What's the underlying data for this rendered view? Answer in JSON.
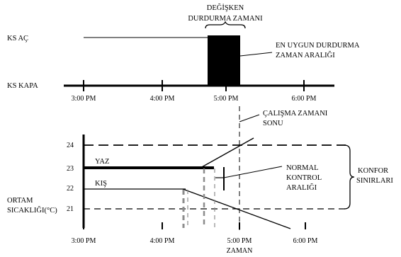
{
  "top_chart": {
    "variable_stop_time_line1": "DEĞİŞKEN",
    "variable_stop_time_line2": "DURDURMA ZAMANI",
    "optimum_stop_line1": "EN UYGUN DURDURMA",
    "optimum_stop_line2": "ZAMAN ARALIĞI",
    "state_on": "KS AÇ",
    "state_off": "KS KAPA",
    "x_ticks": [
      "3:00 PM",
      "4:00 PM",
      "5:00 PM",
      "6:00 PM"
    ]
  },
  "bottom_chart": {
    "end_of_work_line1": "ÇALIŞMA ZAMANI",
    "end_of_work_line2": "SONU",
    "y_ticks": [
      "24",
      "23",
      "22",
      "21"
    ],
    "summer": "YAZ",
    "winter": "KIŞ",
    "normal_control_line1": "NORMAL",
    "normal_control_line2": "KONTROL",
    "normal_control_line3": "ARALIĞI",
    "comfort_line1": "KONFOR",
    "comfort_line2": "SINIRLARI",
    "ambient_line1": "ORTAM",
    "ambient_line2": "SICAKLIĞI(°C)",
    "x_ticks": [
      "3:00 PM",
      "4:00 PM",
      "5:00 PM",
      "6:00 PM"
    ],
    "x_label": "ZAMAN"
  }
}
